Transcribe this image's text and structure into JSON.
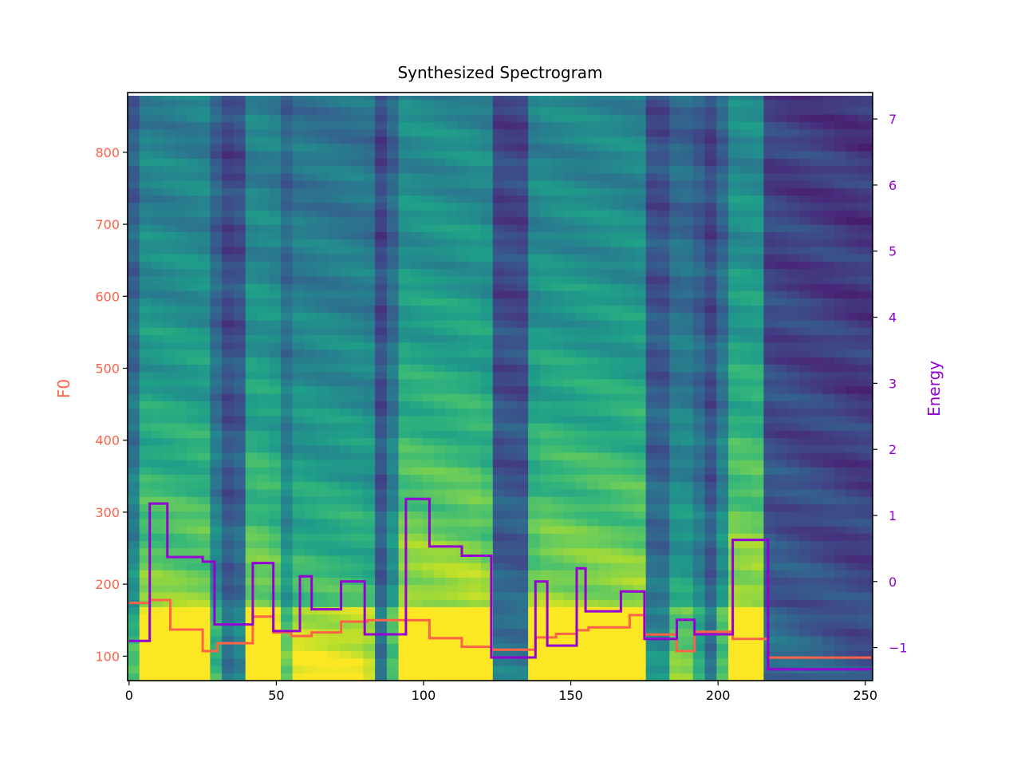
{
  "chart_data": {
    "type": "heatmap",
    "title": "Synthesized Spectrogram",
    "background": "spectrogram heatmap (mel bins over frames)",
    "colormap": "viridis",
    "x_axis": {
      "xlim": [
        -0.5,
        252.5
      ],
      "ticks": [
        0,
        50,
        100,
        150,
        200,
        250
      ],
      "tick_labels": [
        "0",
        "50",
        "100",
        "150",
        "200",
        "250"
      ]
    },
    "y_left": {
      "label": "F0",
      "color": "#FF6347",
      "ylim": [
        66,
        883
      ],
      "ticks": [
        100,
        200,
        300,
        400,
        500,
        600,
        700,
        800
      ],
      "tick_labels": [
        "100",
        "200",
        "300",
        "400",
        "500",
        "600",
        "700",
        "800"
      ]
    },
    "y_right": {
      "label": "Energy",
      "color": "#9400D3",
      "ylim": [
        -1.5,
        7.4
      ],
      "ticks": [
        -1,
        0,
        1,
        2,
        3,
        4,
        5,
        6,
        7
      ],
      "tick_labels": [
        "−1",
        "0",
        "1",
        "2",
        "3",
        "4",
        "5",
        "6",
        "7"
      ]
    },
    "series": [
      {
        "name": "F0",
        "axis": "left",
        "color": "#FF6347",
        "style": "step",
        "x": [
          0,
          7,
          14,
          25,
          30,
          42,
          49,
          55,
          62,
          72,
          81,
          93,
          102,
          113,
          123,
          138,
          145,
          152,
          156,
          162,
          170,
          175,
          186,
          192,
          205,
          217,
          252
        ],
        "y": [
          174,
          178,
          137,
          107,
          118,
          155,
          133,
          128,
          133,
          148,
          150,
          150,
          125,
          113,
          109,
          126,
          131,
          136,
          140,
          140,
          157,
          130,
          107,
          134,
          124,
          98,
          98
        ]
      },
      {
        "name": "Energy",
        "axis": "right",
        "color": "#9400D3",
        "style": "step",
        "x": [
          0,
          7,
          13,
          25,
          29,
          42,
          49,
          58,
          62,
          72,
          80,
          94,
          102,
          113,
          123,
          138,
          142,
          152,
          155,
          157,
          167,
          175,
          186,
          192,
          205,
          217,
          252
        ],
        "y": [
          -0.9,
          1.18,
          0.37,
          0.3,
          -0.65,
          0.28,
          -0.75,
          0.08,
          -0.42,
          0.0,
          -0.8,
          1.25,
          0.53,
          0.39,
          -1.15,
          0.0,
          -0.97,
          0.2,
          -0.45,
          -0.45,
          -0.15,
          -0.87,
          -0.58,
          -0.8,
          0.63,
          -1.33,
          -1.33
        ]
      }
    ]
  }
}
